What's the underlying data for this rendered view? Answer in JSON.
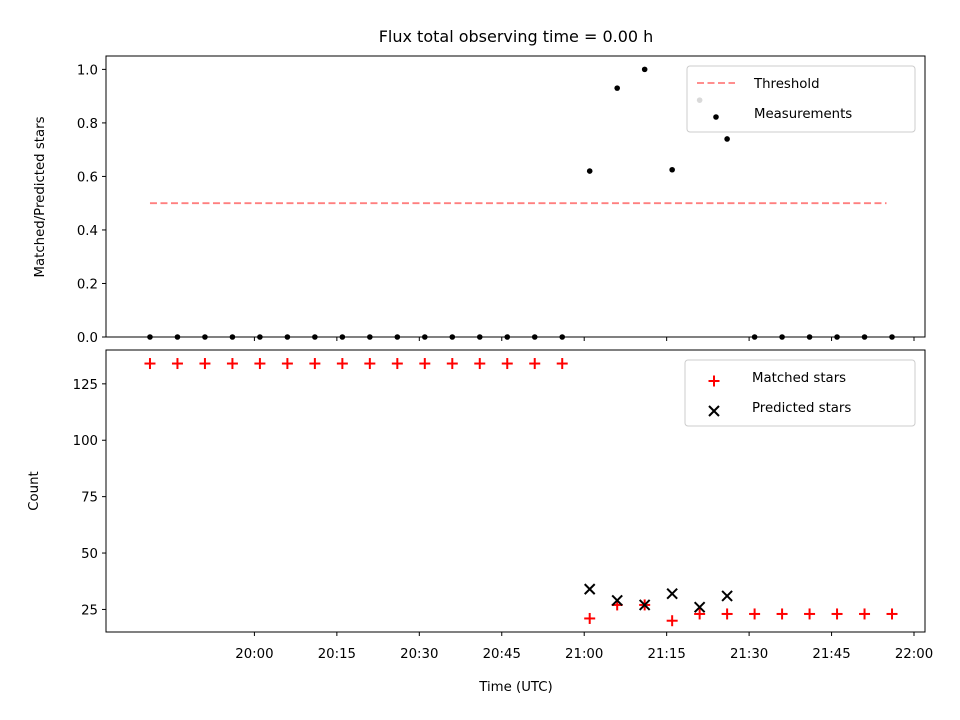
{
  "chart_data": [
    {
      "type": "scatter",
      "title": "Flux total observing time = 0.00 h",
      "xlabel": "",
      "ylabel": "Matched/Predicted stars",
      "xlim": [
        "19:33",
        "22:02"
      ],
      "ylim": [
        0,
        1.05
      ],
      "yticks": [
        "0.0",
        "0.2",
        "0.4",
        "0.6",
        "0.8",
        "1.0"
      ],
      "series": [
        {
          "name": "Measurements",
          "kind": "dots",
          "color": "#000000",
          "x": [
            "19:41",
            "19:46",
            "19:51",
            "19:56",
            "20:01",
            "20:06",
            "20:11",
            "20:16",
            "20:21",
            "20:26",
            "20:31",
            "20:36",
            "20:41",
            "20:46",
            "20:51",
            "20:56",
            "21:01",
            "21:06",
            "21:11",
            "21:16",
            "21:21",
            "21:26",
            "21:31",
            "21:36",
            "21:41",
            "21:46",
            "21:51",
            "21:56"
          ],
          "y": [
            0,
            0,
            0,
            0,
            0,
            0,
            0,
            0,
            0,
            0,
            0,
            0,
            0,
            0,
            0,
            0,
            0.62,
            0.93,
            1.0,
            0.625,
            0.885,
            0.74,
            0,
            0,
            0,
            0,
            0,
            0
          ]
        },
        {
          "name": "Threshold",
          "kind": "dashed-line",
          "color": "#ff7f7f",
          "x": [
            "19:41",
            "21:55"
          ],
          "y": [
            0.5,
            0.5
          ]
        }
      ],
      "legend": [
        "Threshold",
        "Measurements"
      ],
      "legend_position": "top-right",
      "grid": false
    },
    {
      "type": "scatter",
      "title": "",
      "xlabel": "Time (UTC)",
      "ylabel": "Count",
      "xlim": [
        "19:33",
        "22:02"
      ],
      "ylim": [
        15,
        140
      ],
      "yticks": [
        "25",
        "50",
        "75",
        "100",
        "125"
      ],
      "xticks": [
        "20:00",
        "20:15",
        "20:30",
        "20:45",
        "21:00",
        "21:15",
        "21:30",
        "21:45",
        "22:00"
      ],
      "series": [
        {
          "name": "Matched stars",
          "marker": "plus",
          "color": "#ff0000",
          "x": [
            "19:41",
            "19:46",
            "19:51",
            "19:56",
            "20:01",
            "20:06",
            "20:11",
            "20:16",
            "20:21",
            "20:26",
            "20:31",
            "20:36",
            "20:41",
            "20:46",
            "20:51",
            "20:56",
            "21:01",
            "21:06",
            "21:11",
            "21:16",
            "21:21",
            "21:26",
            "21:31",
            "21:36",
            "21:41",
            "21:46",
            "21:51",
            "21:56"
          ],
          "y": [
            134,
            134,
            134,
            134,
            134,
            134,
            134,
            134,
            134,
            134,
            134,
            134,
            134,
            134,
            134,
            134,
            21,
            27,
            27,
            20,
            23,
            23,
            23,
            23,
            23,
            23,
            23,
            23
          ]
        },
        {
          "name": "Predicted stars",
          "marker": "x",
          "color": "#000000",
          "x": [
            "21:01",
            "21:06",
            "21:11",
            "21:16",
            "21:21",
            "21:26"
          ],
          "y": [
            34,
            29,
            27,
            32,
            26,
            31
          ]
        }
      ],
      "legend": [
        "Matched stars",
        "Predicted stars"
      ],
      "legend_position": "top-right",
      "grid": false
    }
  ]
}
